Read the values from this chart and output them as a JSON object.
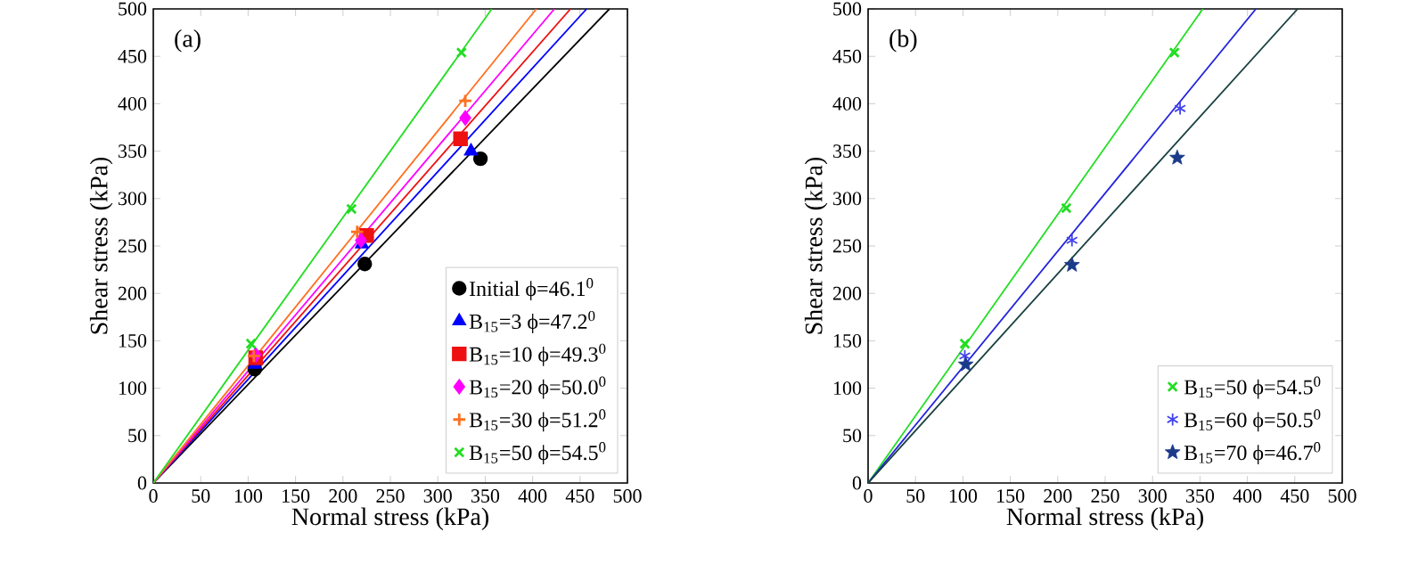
{
  "chart_data": [
    {
      "type": "scatter",
      "xlabel": "Normal stress (kPa)",
      "ylabel": "Shear stress (kPa)",
      "annotations": [
        "(a)"
      ],
      "legend": "bottom right",
      "xlim": [
        0,
        500
      ],
      "ylim": [
        0,
        500
      ],
      "xticks": [
        0,
        50,
        100,
        150,
        200,
        250,
        300,
        350,
        400,
        450,
        500
      ],
      "yticks": [
        0,
        50,
        100,
        150,
        200,
        250,
        300,
        350,
        400,
        450,
        500
      ],
      "series": [
        {
          "type": "line",
          "color": "#000000",
          "x": [
            0,
            481
          ],
          "values": [
            0,
            500
          ]
        },
        {
          "type": "line",
          "color": "#0000ff",
          "x": [
            0,
            457
          ],
          "values": [
            0,
            500
          ]
        },
        {
          "type": "line",
          "color": "#ee1111",
          "x": [
            0,
            440
          ],
          "values": [
            0,
            500
          ]
        },
        {
          "type": "line",
          "color": "#ff00ff",
          "x": [
            0,
            423
          ],
          "values": [
            0,
            500
          ]
        },
        {
          "type": "line",
          "color": "#ff7020",
          "x": [
            0,
            404
          ],
          "values": [
            0,
            500
          ]
        },
        {
          "type": "line",
          "color": "#22dd22",
          "x": [
            0,
            357
          ],
          "values": [
            0,
            500
          ]
        },
        {
          "name": "Initial ϕ=46.1$^{0}$",
          "marker": "circle",
          "color": "#000000",
          "x": [
            107,
            223,
            345
          ],
          "values": [
            120,
            231,
            342
          ]
        },
        {
          "name": "B$_{15}$=3 ϕ=47.2$^{0}$",
          "marker": "triangle",
          "color": "#0000ff",
          "x": [
            107,
            220,
            335
          ],
          "values": [
            125,
            252,
            350
          ]
        },
        {
          "name": "B$_{15}$=10 ϕ=49.3$^{0}$",
          "marker": "square",
          "color": "#ee1111",
          "x": [
            108,
            225,
            324
          ],
          "values": [
            132,
            261,
            363
          ]
        },
        {
          "name": "B$_{15}$=20 ϕ=50.0$^{0}$",
          "marker": "diamond",
          "color": "#ff00ff",
          "x": [
            108,
            219,
            329
          ],
          "values": [
            135,
            256,
            385
          ]
        },
        {
          "name": "B$_{15}$=30 ϕ=51.2$^{0}$",
          "marker": "plus",
          "color": "#ff7020",
          "x": [
            106,
            215,
            329
          ],
          "values": [
            134,
            265,
            403
          ]
        },
        {
          "name": "B$_{15}$=50 ϕ=54.5$^{0}$",
          "marker": "cross",
          "color": "#22dd22",
          "x": [
            103,
            209,
            325
          ],
          "values": [
            147,
            289,
            454
          ]
        }
      ]
    },
    {
      "type": "scatter",
      "xlabel": "Normal stress (kPa)",
      "ylabel": "Shear stress (kPa)",
      "annotations": [
        "(b)"
      ],
      "legend": "bottom right",
      "xlim": [
        0,
        500
      ],
      "ylim": [
        0,
        500
      ],
      "xticks": [
        0,
        50,
        100,
        150,
        200,
        250,
        300,
        350,
        400,
        450,
        500
      ],
      "yticks": [
        0,
        50,
        100,
        150,
        200,
        250,
        300,
        350,
        400,
        450,
        500
      ],
      "series": [
        {
          "type": "line",
          "color": "#22dd22",
          "x": [
            0,
            353
          ],
          "values": [
            0,
            500
          ]
        },
        {
          "type": "line",
          "color": "#2222dd",
          "x": [
            0,
            409
          ],
          "values": [
            0,
            500
          ]
        },
        {
          "type": "line",
          "color": "#1a4040",
          "x": [
            0,
            453
          ],
          "values": [
            0,
            500
          ]
        },
        {
          "name": "B$_{15}$=50 ϕ=54.5$^{0}$",
          "marker": "cross",
          "color": "#22dd22",
          "x": [
            102,
            209,
            323
          ],
          "values": [
            147,
            290,
            454
          ]
        },
        {
          "name": "B$_{15}$=60 ϕ=50.5$^{0}$",
          "color": "#4444ee",
          "x": [
            102,
            215,
            329
          ],
          "values": [
            134,
            256,
            395
          ]
        },
        {
          "name": "B$_{15}$=70 ϕ=46.7$^{0}$",
          "marker": "star",
          "color": "#1a3a8a",
          "x": [
            103,
            215,
            326
          ],
          "values": [
            125,
            230,
            343
          ]
        }
      ]
    }
  ]
}
